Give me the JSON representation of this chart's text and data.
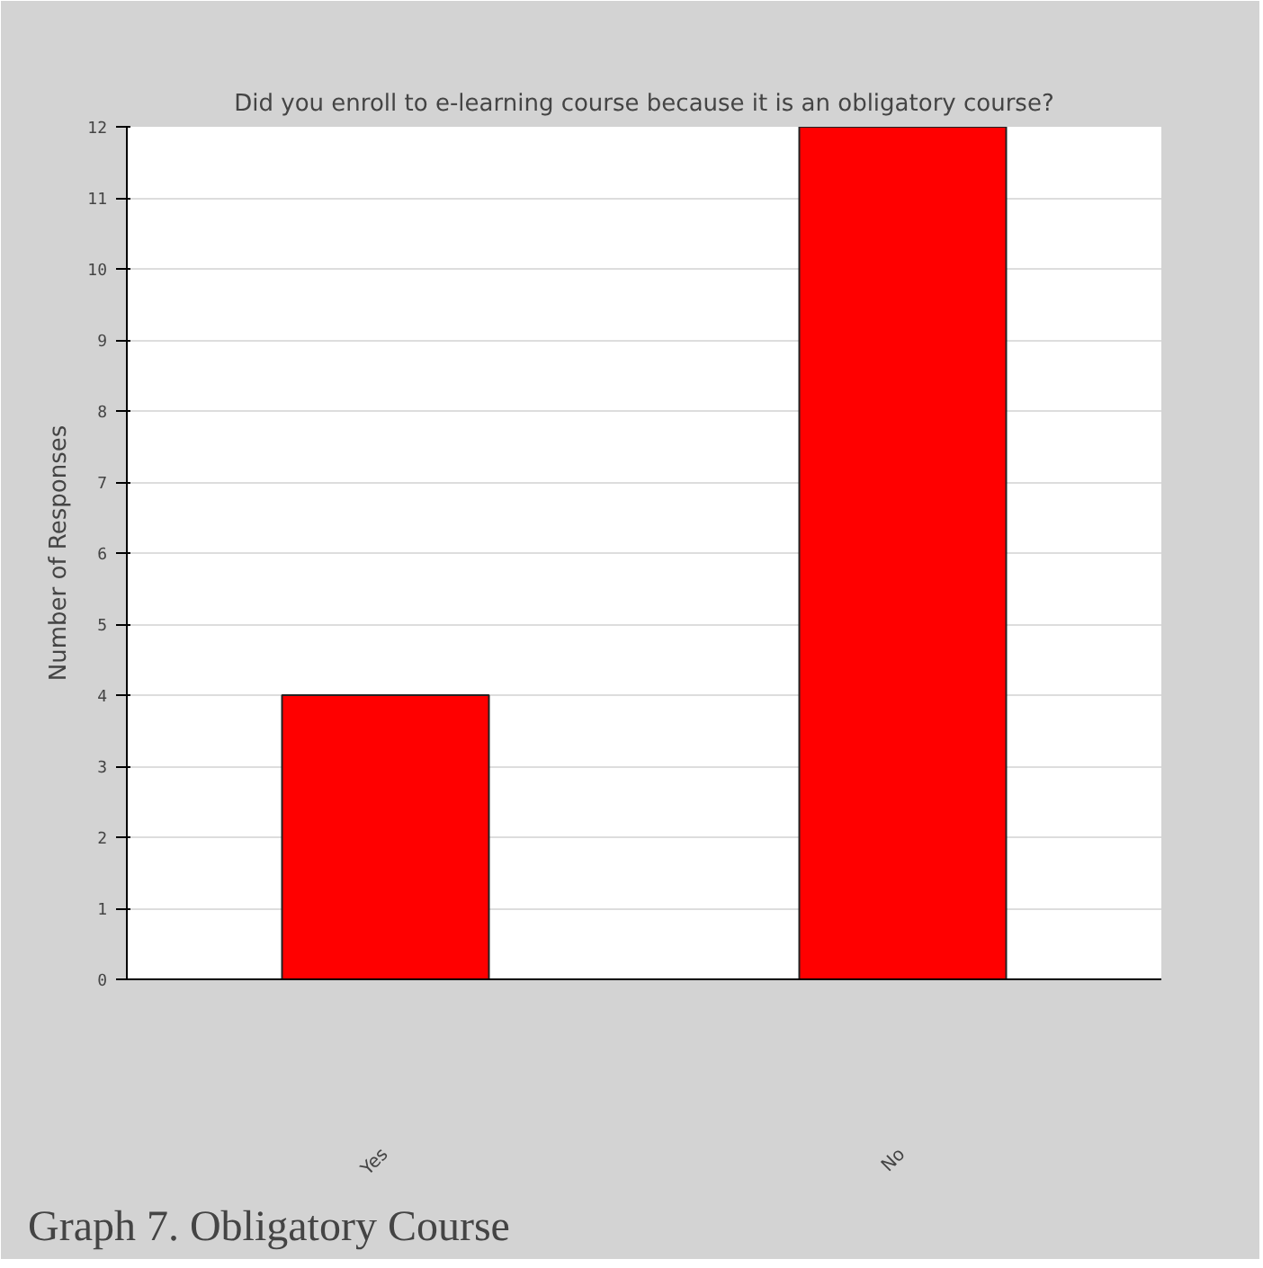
{
  "chart_data": {
    "type": "bar",
    "title": "Did you enroll to e-learning course because it is an obligatory course?",
    "ylabel": "Number of Responses",
    "categories": [
      "Yes",
      "No"
    ],
    "values": [
      4,
      12
    ],
    "color": "#ff0000",
    "ylim": [
      0,
      12
    ],
    "yticks": [
      0,
      1,
      2,
      3,
      4,
      5,
      6,
      7,
      8,
      9,
      10,
      11,
      12
    ],
    "grid": "y",
    "annotations": [
      "Graph 7. Obligatory Course"
    ]
  }
}
